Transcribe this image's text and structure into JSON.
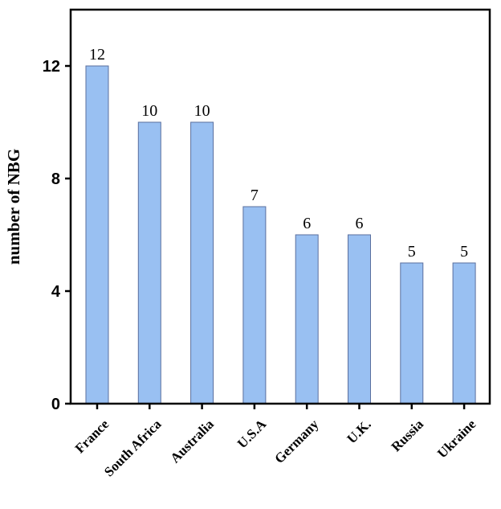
{
  "chart_data": {
    "type": "bar",
    "title": "",
    "xlabel": "",
    "ylabel": "number of NBG",
    "categories": [
      "France",
      "South Africa",
      "Australia",
      "U.S.A",
      "Germany",
      "U.K.",
      "Russia",
      "Ukraine"
    ],
    "values": [
      12,
      10,
      10,
      7,
      6,
      6,
      5,
      5
    ],
    "data_labels": [
      "12",
      "10",
      "10",
      "7",
      "6",
      "6",
      "5",
      "5"
    ],
    "ylim": [
      0,
      14
    ],
    "yticks": [
      0,
      4,
      8,
      12
    ],
    "ytick_labels": [
      "0",
      "4",
      "8",
      "12"
    ],
    "grid": false,
    "legend": "none",
    "bar_color": "#99c0f2",
    "bar_edge_color": "#5a6f9e"
  }
}
